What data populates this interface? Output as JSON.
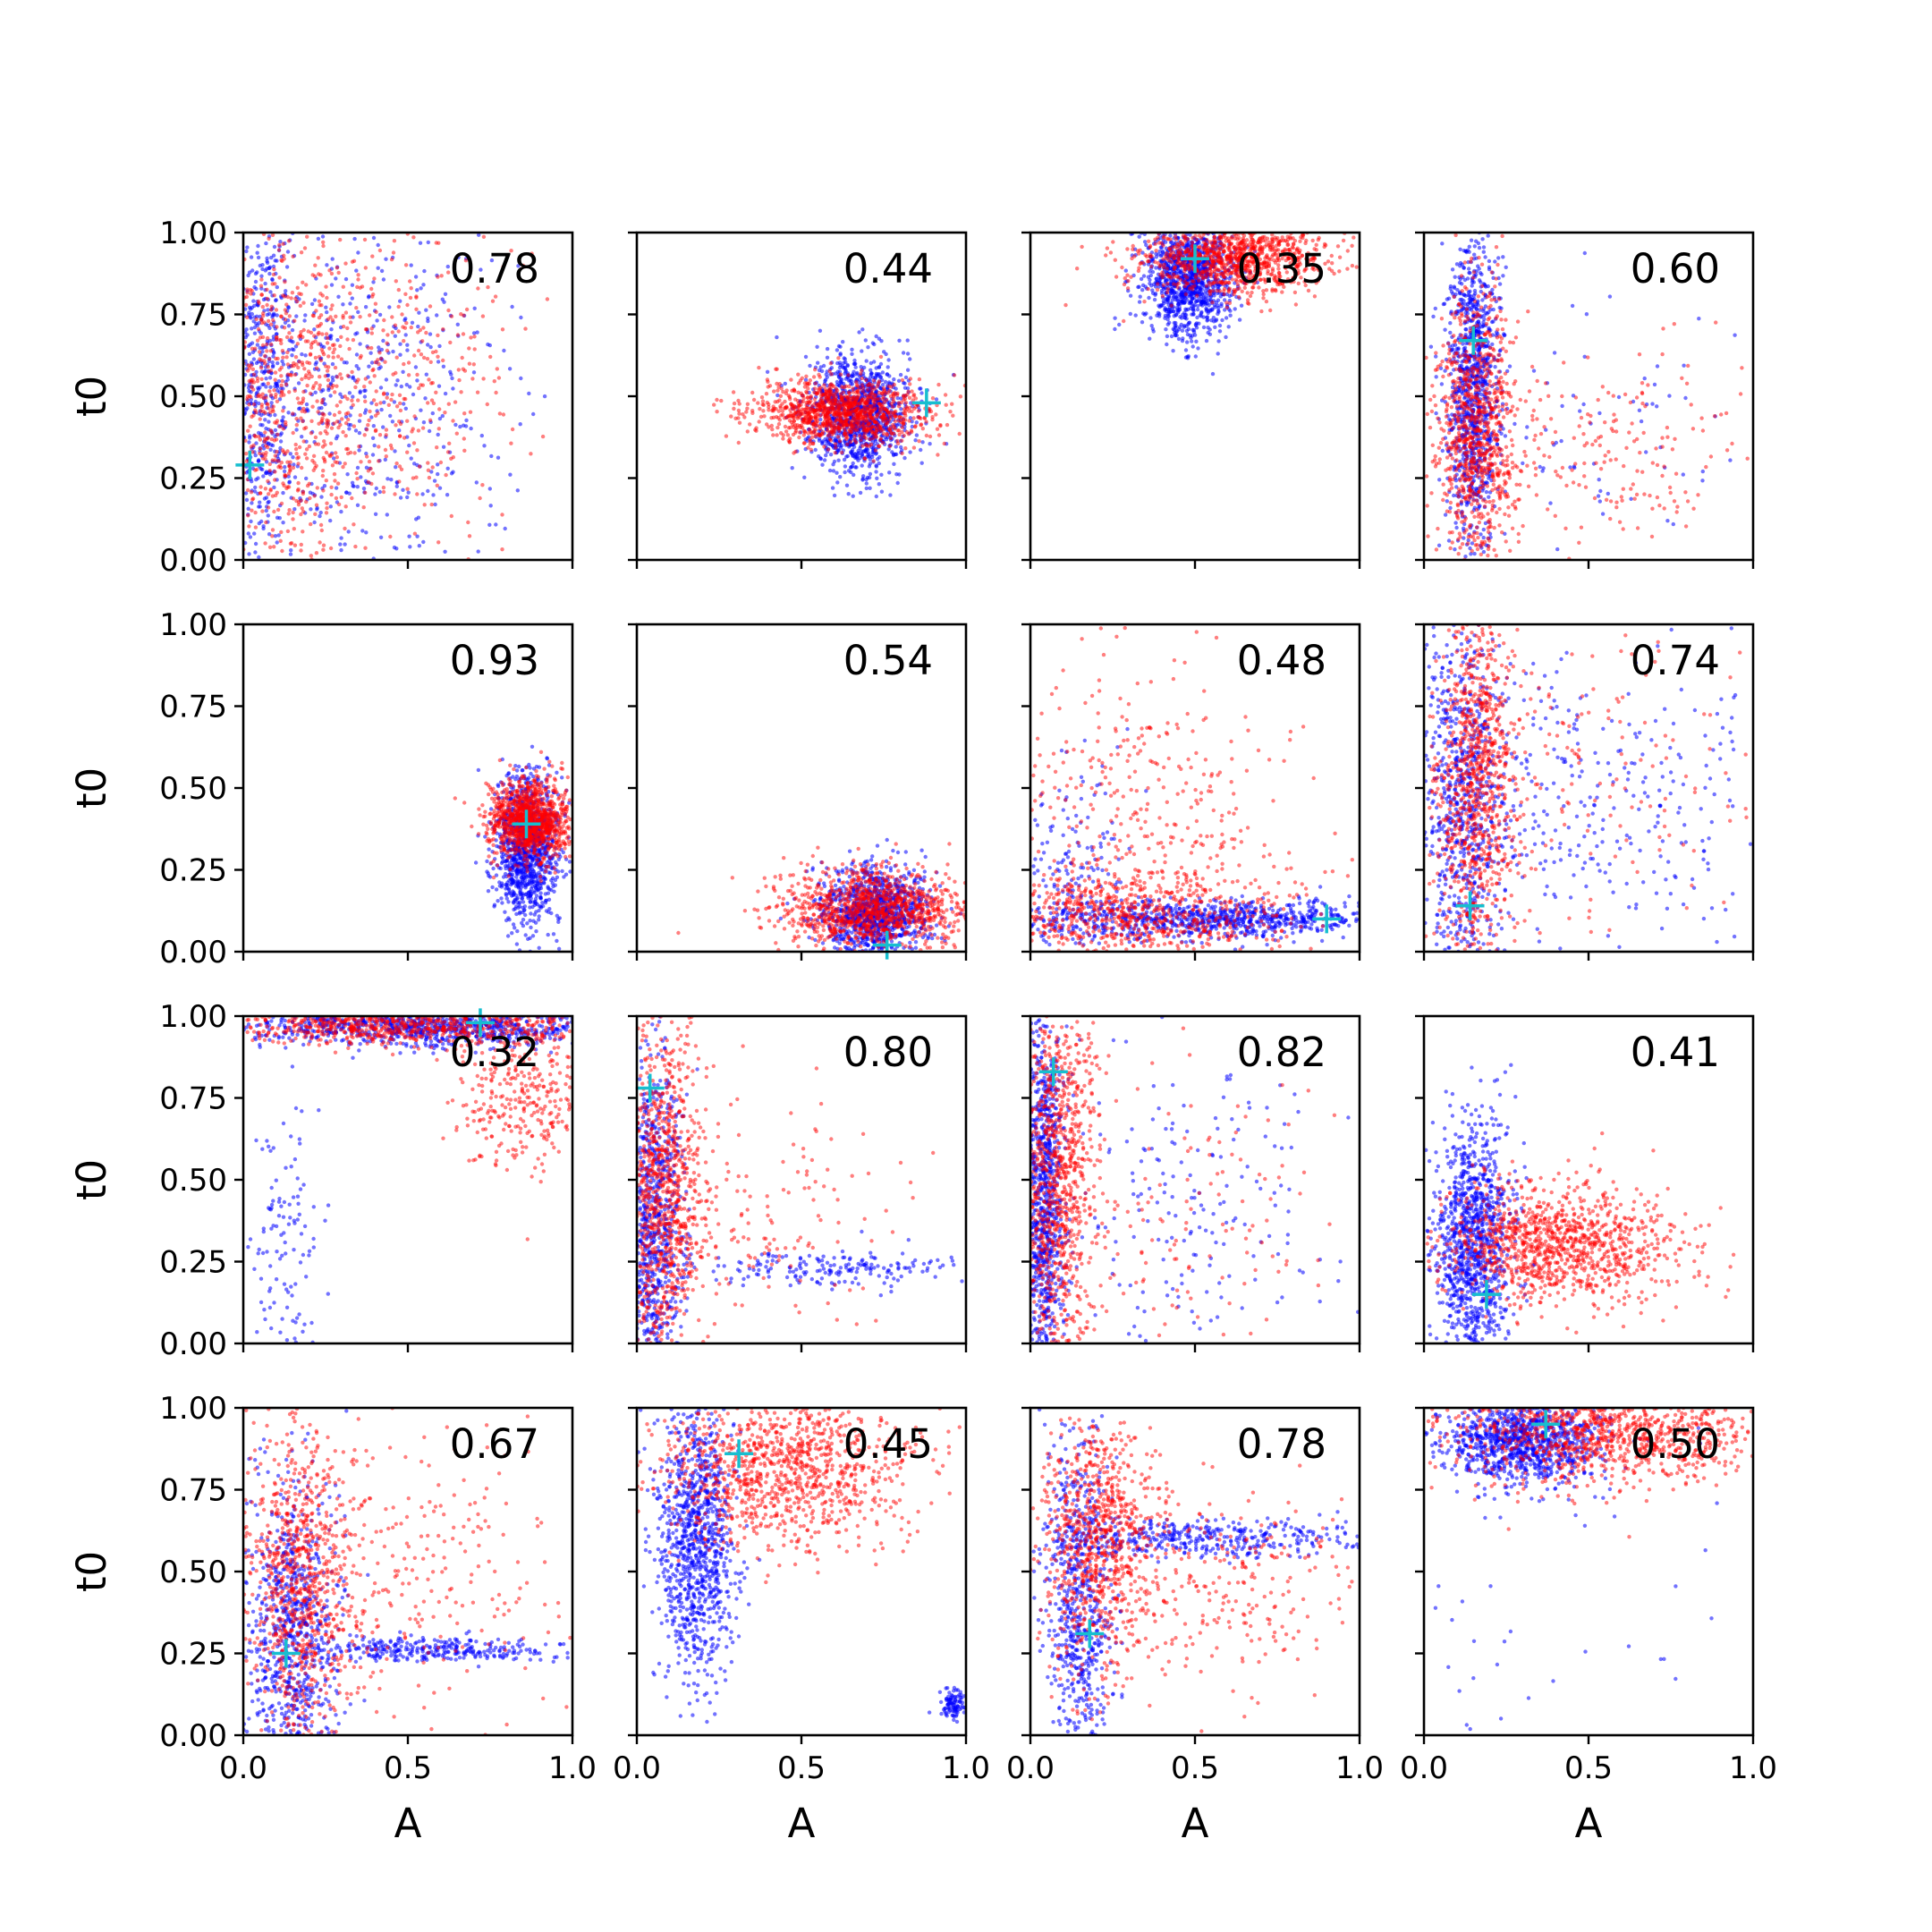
{
  "chart_data": {
    "type": "scatter",
    "layout": "4x4 grid of scatter panels",
    "xlabel": "A",
    "ylabel": "t0",
    "xlim": [
      0,
      1
    ],
    "ylim": [
      0,
      1
    ],
    "xticks": [
      "0.0",
      "0.5",
      "1.0"
    ],
    "yticks": [
      "0.00",
      "0.25",
      "0.50",
      "0.75",
      "1.00"
    ],
    "series_colors": {
      "first": "#0000ff",
      "second": "#ff0000",
      "marker": "#17becf"
    },
    "panels": [
      {
        "label": "0.78",
        "marker": [
          0.02,
          0.29
        ],
        "blue": [
          [
            0.05,
            0.55,
            0.05,
            0.35,
            0.12
          ],
          [
            0.3,
            0.5,
            0.25,
            0.3,
            0.18
          ]
        ],
        "red": [
          [
            0.1,
            0.5,
            0.1,
            0.3,
            0.12
          ],
          [
            0.35,
            0.55,
            0.25,
            0.28,
            0.14
          ]
        ]
      },
      {
        "label": "0.44",
        "marker": [
          0.88,
          0.48
        ],
        "blue": [
          [
            0.68,
            0.44,
            0.08,
            0.09,
            1
          ]
        ],
        "red": [
          [
            0.62,
            0.45,
            0.13,
            0.05,
            1
          ]
        ]
      },
      {
        "label": "0.35",
        "marker": [
          0.5,
          0.92
        ],
        "blue": [
          [
            0.48,
            0.86,
            0.07,
            0.09,
            1
          ]
        ],
        "red": [
          [
            0.62,
            0.93,
            0.15,
            0.06,
            1
          ]
        ]
      },
      {
        "label": "0.60",
        "marker": [
          0.15,
          0.67
        ],
        "blue": [
          [
            0.15,
            0.55,
            0.04,
            0.25,
            0.92
          ],
          [
            0.5,
            0.45,
            0.3,
            0.2,
            0.08
          ]
        ],
        "red": [
          [
            0.16,
            0.4,
            0.06,
            0.22,
            0.8
          ],
          [
            0.5,
            0.35,
            0.25,
            0.15,
            0.2
          ]
        ]
      },
      {
        "label": "0.93",
        "marker": [
          0.86,
          0.39
        ],
        "blue": [
          [
            0.86,
            0.31,
            0.05,
            0.12,
            1
          ]
        ],
        "red": [
          [
            0.87,
            0.4,
            0.06,
            0.06,
            1
          ]
        ]
      },
      {
        "label": "0.54",
        "marker": [
          0.76,
          0.02
        ],
        "blue": [
          [
            0.72,
            0.12,
            0.08,
            0.07,
            1
          ]
        ],
        "red": [
          [
            0.72,
            0.13,
            0.15,
            0.06,
            1
          ]
        ]
      },
      {
        "label": "0.48",
        "marker": [
          0.9,
          0.1
        ],
        "blue": [
          [
            0.55,
            0.1,
            0.28,
            0.03,
            0.75
          ],
          [
            0.1,
            0.15,
            0.1,
            0.2,
            0.25
          ]
        ],
        "red": [
          [
            0.3,
            0.12,
            0.25,
            0.07,
            0.7
          ],
          [
            0.3,
            0.45,
            0.25,
            0.2,
            0.3
          ]
        ]
      },
      {
        "label": "0.74",
        "marker": [
          0.14,
          0.14
        ],
        "blue": [
          [
            0.12,
            0.45,
            0.06,
            0.3,
            0.7
          ],
          [
            0.55,
            0.45,
            0.3,
            0.25,
            0.3
          ]
        ],
        "red": [
          [
            0.16,
            0.5,
            0.06,
            0.3,
            0.85
          ],
          [
            0.5,
            0.5,
            0.25,
            0.25,
            0.15
          ]
        ]
      },
      {
        "label": "0.32",
        "marker": [
          0.72,
          0.98
        ],
        "blue": [
          [
            0.55,
            0.97,
            0.3,
            0.03,
            0.88
          ],
          [
            0.12,
            0.3,
            0.06,
            0.25,
            0.12
          ]
        ],
        "red": [
          [
            0.5,
            0.97,
            0.3,
            0.03,
            0.7
          ],
          [
            0.85,
            0.75,
            0.1,
            0.12,
            0.3
          ]
        ]
      },
      {
        "label": "0.80",
        "marker": [
          0.04,
          0.78
        ],
        "blue": [
          [
            0.05,
            0.35,
            0.05,
            0.3,
            0.8
          ],
          [
            0.6,
            0.23,
            0.18,
            0.03,
            0.2
          ]
        ],
        "red": [
          [
            0.08,
            0.45,
            0.06,
            0.28,
            0.85
          ],
          [
            0.35,
            0.4,
            0.2,
            0.2,
            0.15
          ]
        ]
      },
      {
        "label": "0.82",
        "marker": [
          0.07,
          0.83
        ],
        "blue": [
          [
            0.04,
            0.45,
            0.03,
            0.3,
            0.8
          ],
          [
            0.45,
            0.4,
            0.25,
            0.25,
            0.2
          ]
        ],
        "red": [
          [
            0.08,
            0.5,
            0.06,
            0.28,
            0.85
          ],
          [
            0.4,
            0.4,
            0.25,
            0.25,
            0.15
          ]
        ]
      },
      {
        "label": "0.41",
        "marker": [
          0.19,
          0.15
        ],
        "blue": [
          [
            0.15,
            0.3,
            0.06,
            0.2,
            1
          ]
        ],
        "red": [
          [
            0.4,
            0.3,
            0.18,
            0.09,
            1
          ]
        ]
      },
      {
        "label": "0.67",
        "marker": [
          0.13,
          0.25
        ],
        "blue": [
          [
            0.15,
            0.3,
            0.07,
            0.25,
            0.7
          ],
          [
            0.6,
            0.26,
            0.2,
            0.02,
            0.3
          ]
        ],
        "red": [
          [
            0.18,
            0.45,
            0.08,
            0.25,
            0.75
          ],
          [
            0.5,
            0.5,
            0.25,
            0.25,
            0.25
          ]
        ]
      },
      {
        "label": "0.45",
        "marker": [
          0.31,
          0.86
        ],
        "blue": [
          [
            0.18,
            0.6,
            0.06,
            0.22,
            0.9
          ],
          [
            0.96,
            0.1,
            0.02,
            0.02,
            0.1
          ]
        ],
        "red": [
          [
            0.45,
            0.82,
            0.2,
            0.12,
            1
          ]
        ]
      },
      {
        "label": "0.78",
        "marker": [
          0.18,
          0.31
        ],
        "blue": [
          [
            0.15,
            0.4,
            0.05,
            0.3,
            0.6
          ],
          [
            0.5,
            0.6,
            0.3,
            0.03,
            0.4
          ]
        ],
        "red": [
          [
            0.2,
            0.6,
            0.08,
            0.2,
            0.7
          ],
          [
            0.5,
            0.45,
            0.25,
            0.15,
            0.3
          ]
        ]
      },
      {
        "label": "0.50",
        "marker": [
          0.37,
          0.95
        ],
        "blue": [
          [
            0.3,
            0.9,
            0.12,
            0.07,
            0.95
          ],
          [
            0.4,
            0.3,
            0.3,
            0.25,
            0.05
          ]
        ],
        "red": [
          [
            0.55,
            0.93,
            0.25,
            0.08,
            1
          ]
        ]
      }
    ]
  }
}
